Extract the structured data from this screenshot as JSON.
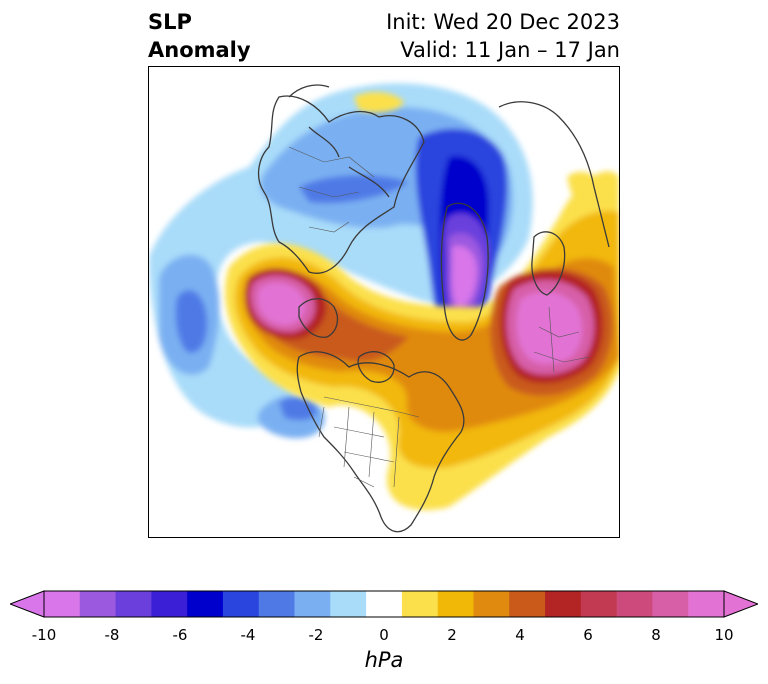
{
  "title": {
    "left_line1": "SLP",
    "left_line2": "Anomaly",
    "right_line1": "Init: Wed 20 Dec 2023",
    "right_line2": "Valid: 11 Jan – 17 Jan"
  },
  "colorbar": {
    "unit": "hPa",
    "ticks": [
      "-10",
      "-8",
      "-6",
      "-4",
      "-2",
      "0",
      "2",
      "4",
      "6",
      "8",
      "10"
    ],
    "levels": [
      -10,
      -9,
      -8,
      -7,
      -6,
      -5,
      -4,
      -3,
      -2,
      -1,
      1,
      2,
      3,
      4,
      5,
      6,
      7,
      8,
      9,
      10
    ],
    "colors": [
      "#d876ea",
      "#9b59e0",
      "#6a3fdc",
      "#3a1fd6",
      "#0000cc",
      "#2a45de",
      "#4f7ae6",
      "#7ab0f2",
      "#a9dcf9",
      "#ffffff",
      "#fbe04c",
      "#f2b807",
      "#e08a10",
      "#c95a1a",
      "#b32424",
      "#c23a52",
      "#cc4b7c",
      "#d75fa8",
      "#e273d4"
    ],
    "under_color": "#d876ea",
    "over_color": "#e273d4"
  },
  "map": {
    "projection": "north-polar-stereographic",
    "field": "sea level pressure anomaly",
    "colors": {
      "light_blue": "#a9dcf9",
      "mid_blue": "#7ab0f2",
      "blue": "#4f7ae6",
      "deep_blue": "#2a45de",
      "navy": "#0000cc",
      "violet": "#6a3fdc",
      "purple": "#9b59e0",
      "magenta": "#e273d4",
      "yellow": "#fbe04c",
      "gold": "#f2b807",
      "orange": "#e08a10",
      "burnt": "#c95a1a",
      "red": "#b32424",
      "rose": "#c23a52",
      "pink": "#d75fa8",
      "coast": "#3a3a3a"
    }
  }
}
